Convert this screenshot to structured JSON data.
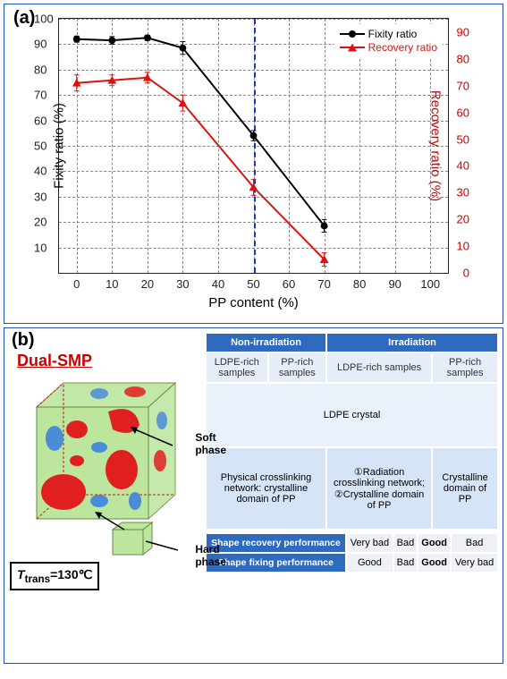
{
  "panel_a": {
    "label": "(a)",
    "chart": {
      "type": "dual-axis-line",
      "x_label": "PP content (%)",
      "y_left_label": "Fixity ratio (%)",
      "y_right_label": "Recovery ratio (%)",
      "xlim": [
        -5,
        105
      ],
      "ylim_left": [
        0,
        100
      ],
      "ylim_right": [
        0,
        95
      ],
      "xtick_step": 10,
      "ytick_left_step": 10,
      "ytick_right_step": 10,
      "ref_vline_x": 50,
      "grid_color": "#888888",
      "border_color": "#222222",
      "series": [
        {
          "name": "Fixity ratio",
          "color": "#000000",
          "marker": "circle",
          "axis": "left",
          "points": [
            [
              0,
              92
            ],
            [
              10,
              91.5
            ],
            [
              20,
              92.5
            ],
            [
              30,
              88.5
            ],
            [
              50,
              54
            ],
            [
              70,
              18.5
            ]
          ],
          "yerr": [
            1.2,
            1.5,
            1,
            2.5,
            2,
            2.5
          ]
        },
        {
          "name": "Recovery ratio",
          "color": "#e01010",
          "marker": "triangle",
          "axis": "right",
          "points": [
            [
              0,
              71
            ],
            [
              10,
              72
            ],
            [
              20,
              73
            ],
            [
              30,
              63.5
            ],
            [
              50,
              32
            ],
            [
              70,
              5
            ]
          ],
          "yerr": [
            3,
            2,
            2,
            3,
            3,
            2.5
          ]
        }
      ]
    }
  },
  "panel_b": {
    "label": "(b)",
    "title": "Dual-SMP",
    "soft_phase_label": "Soft phase",
    "hard_phase_label": "Hard phase",
    "t_trans": "Tₜᵣₐₙₛ=130℃",
    "cube": {
      "face_color": "#bce69e",
      "blob_red": "#e02020",
      "blob_blue": "#4a8cd6",
      "edge": "#c81818"
    },
    "table": {
      "col_groups": [
        "Non-irradiation",
        "Irradiation"
      ],
      "sub_cols": [
        "LDPE-rich samples",
        "PP-rich samples",
        "LDPE-rich samples",
        "PP-rich samples"
      ],
      "soft_cell": "LDPE crystal",
      "hard_cells": [
        "Physical crosslinking network: crystalline domain of PP",
        "①Radiation crosslinking network;  ②Crystalline domain of PP",
        "Crystalline domain of PP"
      ],
      "bottom_rows": [
        {
          "label": "Shape recovery performance",
          "vals": [
            "Very bad",
            "Bad",
            "Good",
            "Bad"
          ]
        },
        {
          "label": "Shape fixing performance",
          "vals": [
            "Good",
            "Bad",
            "Good",
            "Very bad"
          ]
        }
      ]
    }
  }
}
